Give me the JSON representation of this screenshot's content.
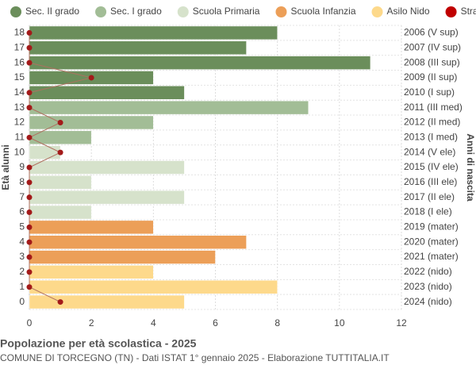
{
  "chart_data": {
    "type": "bar",
    "orientation": "horizontal",
    "title": "Popolazione per età scolastica - 2025",
    "subtitle": "COMUNE DI TORCEGNO (TN) - Dati ISTAT 1° gennaio 2025 - Elaborazione TUTTITALIA.IT",
    "y_label": "Età alunni",
    "y2_label": "Anni di nascita",
    "categories": [
      "18",
      "17",
      "16",
      "15",
      "14",
      "13",
      "12",
      "11",
      "10",
      "9",
      "8",
      "7",
      "6",
      "5",
      "4",
      "3",
      "2",
      "1",
      "0"
    ],
    "right_labels": [
      "2006 (V sup)",
      "2007 (IV sup)",
      "2008 (III sup)",
      "2009 (II sup)",
      "2010 (I sup)",
      "2011 (III med)",
      "2012 (II med)",
      "2013 (I med)",
      "2014 (V ele)",
      "2015 (IV ele)",
      "2016 (III ele)",
      "2017 (II ele)",
      "2018 (I ele)",
      "2019 (mater)",
      "2020 (mater)",
      "2021 (mater)",
      "2022 (nido)",
      "2023 (nido)",
      "2024 (nido)"
    ],
    "series": [
      {
        "name": "Sec. II grado",
        "color": "#6b8e5b",
        "values": [
          8,
          7,
          11,
          4,
          5,
          null,
          null,
          null,
          null,
          null,
          null,
          null,
          null,
          null,
          null,
          null,
          null,
          null,
          null
        ]
      },
      {
        "name": "Sec. I grado",
        "color": "#a2bd96",
        "values": [
          null,
          null,
          null,
          null,
          null,
          9,
          4,
          2,
          null,
          null,
          null,
          null,
          null,
          null,
          null,
          null,
          null,
          null,
          null
        ]
      },
      {
        "name": "Scuola Primaria",
        "color": "#d6e2cb",
        "values": [
          null,
          null,
          null,
          null,
          null,
          null,
          null,
          null,
          1,
          5,
          2,
          5,
          2,
          null,
          null,
          null,
          null,
          null,
          null
        ]
      },
      {
        "name": "Scuola Infanzia",
        "color": "#ec9f58",
        "values": [
          null,
          null,
          null,
          null,
          null,
          null,
          null,
          null,
          null,
          null,
          null,
          null,
          null,
          4,
          7,
          6,
          null,
          null,
          null
        ]
      },
      {
        "name": "Asilo Nido",
        "color": "#fdd98b",
        "values": [
          null,
          null,
          null,
          null,
          null,
          null,
          null,
          null,
          null,
          null,
          null,
          null,
          null,
          null,
          null,
          null,
          4,
          8,
          5
        ]
      },
      {
        "name": "Stranieri",
        "color": "#a31a1a",
        "kind": "line",
        "values": [
          0,
          0,
          0,
          2,
          0,
          0,
          1,
          0,
          1,
          0,
          0,
          0,
          0,
          0,
          0,
          0,
          0,
          0,
          1
        ]
      }
    ],
    "xlim": [
      0,
      12
    ],
    "xticks": [
      0,
      2,
      4,
      6,
      8,
      10,
      12
    ],
    "grid": true,
    "legend": "top"
  }
}
